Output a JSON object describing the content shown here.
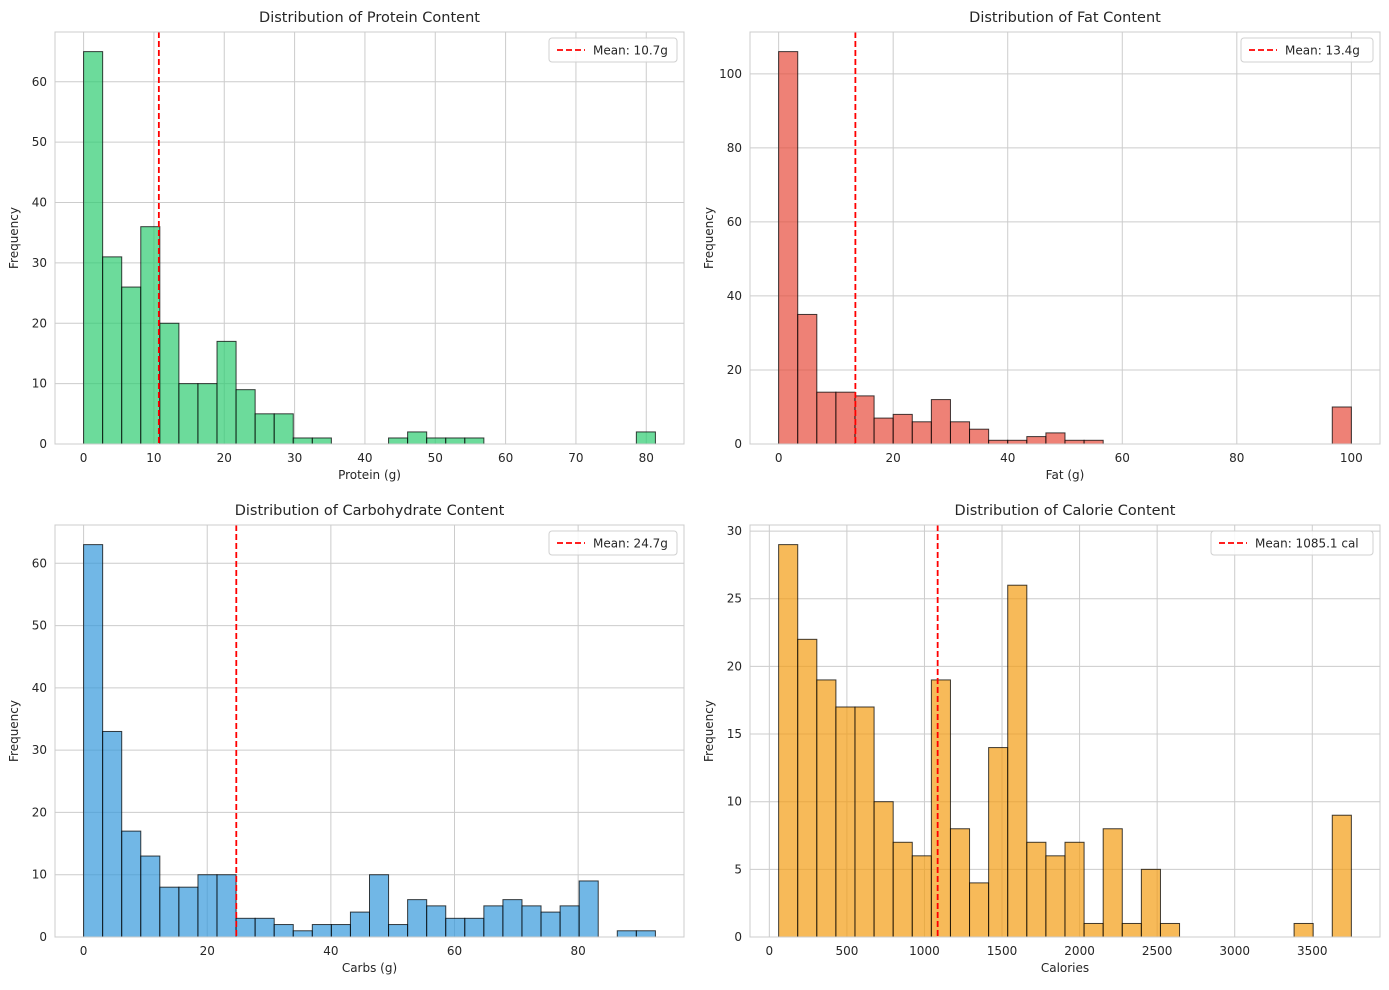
{
  "chart_data": [
    {
      "type": "bar",
      "title": "Distribution of Protein Content",
      "xlabel": "Protein (g)",
      "ylabel": "Frequency",
      "bin_start": 0,
      "bin_end": 81.3,
      "values": [
        65,
        31,
        26,
        36,
        20,
        10,
        10,
        17,
        9,
        5,
        5,
        1,
        1,
        0,
        0,
        0,
        1,
        2,
        1,
        1,
        1,
        0,
        0,
        0,
        0,
        0,
        0,
        0,
        0,
        2
      ],
      "xticks": [
        0,
        10,
        20,
        30,
        40,
        50,
        60,
        70,
        80
      ],
      "yticks": [
        0,
        10,
        20,
        30,
        40,
        50,
        60
      ],
      "ylim": [
        0,
        68.25
      ],
      "mean": 10.7,
      "legend": "Mean: 10.7g",
      "legend_position": "top-right",
      "color": "#2ecc71",
      "grid": true
    },
    {
      "type": "bar",
      "title": "Distribution of Fat Content",
      "xlabel": "Fat (g)",
      "ylabel": "Frequency",
      "bin_start": 0,
      "bin_end": 100,
      "values": [
        106,
        35,
        14,
        14,
        13,
        7,
        8,
        6,
        12,
        6,
        4,
        1,
        1,
        2,
        3,
        1,
        1,
        0,
        0,
        0,
        0,
        0,
        0,
        0,
        0,
        0,
        0,
        0,
        0,
        10
      ],
      "xticks": [
        0,
        20,
        40,
        60,
        80,
        100
      ],
      "yticks": [
        0,
        20,
        40,
        60,
        80,
        100
      ],
      "ylim": [
        0,
        111.3
      ],
      "mean": 13.4,
      "legend": "Mean: 13.4g",
      "legend_position": "top-right",
      "color": "#e74c3c",
      "grid": true
    },
    {
      "type": "bar",
      "title": "Distribution of Carbohydrate Content",
      "xlabel": "Carbs (g)",
      "ylabel": "Frequency",
      "bin_start": 0,
      "bin_end": 92.5,
      "values": [
        63,
        33,
        17,
        13,
        8,
        8,
        10,
        10,
        3,
        3,
        2,
        1,
        2,
        2,
        4,
        10,
        2,
        6,
        5,
        3,
        3,
        5,
        6,
        5,
        4,
        5,
        9,
        0,
        1,
        1
      ],
      "xticks": [
        0,
        20,
        40,
        60,
        80
      ],
      "yticks": [
        0,
        10,
        20,
        30,
        40,
        50,
        60
      ],
      "ylim": [
        0,
        66.15
      ],
      "mean": 24.7,
      "legend": "Mean: 24.7g",
      "legend_position": "top-right",
      "color": "#3498db",
      "grid": true
    },
    {
      "type": "bar",
      "title": "Distribution of Calorie Content",
      "xlabel": "Calories",
      "ylabel": "Frequency",
      "bin_start": 60,
      "bin_end": 3752,
      "values": [
        29,
        22,
        19,
        17,
        17,
        10,
        7,
        6,
        19,
        8,
        4,
        14,
        26,
        7,
        6,
        7,
        1,
        8,
        1,
        5,
        1,
        0,
        0,
        0,
        0,
        0,
        0,
        1,
        0,
        9
      ],
      "xticks": [
        0,
        500,
        1000,
        1500,
        2000,
        2500,
        3000,
        3500
      ],
      "yticks": [
        0,
        5,
        10,
        15,
        20,
        25,
        30
      ],
      "ylim": [
        0,
        30.45
      ],
      "mean": 1085.1,
      "legend": "Mean: 1085.1 cal",
      "legend_position": "top-right",
      "color": "#f39c12",
      "grid": true
    }
  ]
}
